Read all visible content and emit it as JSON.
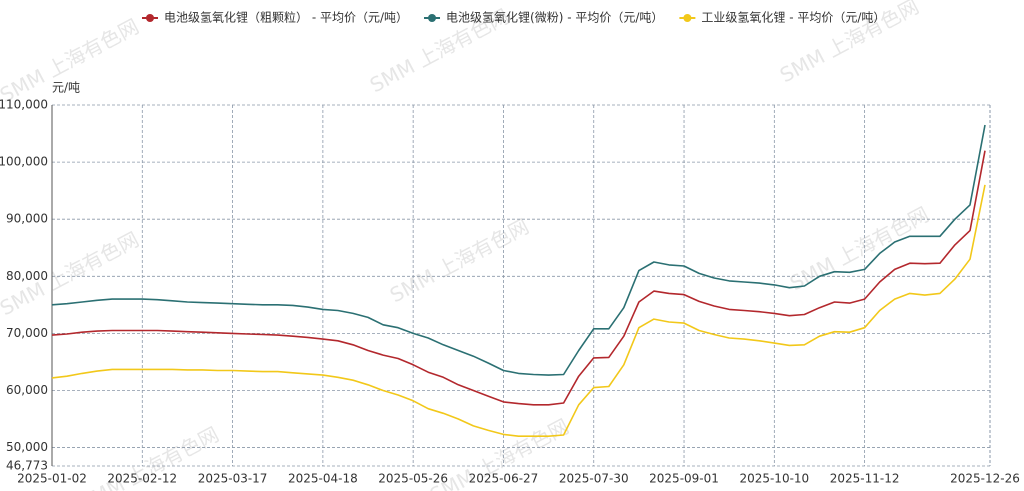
{
  "chart_data": {
    "type": "line",
    "y_unit": "元/吨",
    "watermark": "SMM 上海有色网",
    "categories": [
      "2025-01-02",
      null,
      null,
      null,
      null,
      null,
      "2025-02-12",
      null,
      null,
      null,
      null,
      null,
      "2025-03-17",
      null,
      null,
      null,
      null,
      null,
      "2025-04-18",
      null,
      null,
      null,
      null,
      null,
      "2025-05-26",
      null,
      null,
      null,
      null,
      null,
      "2025-06-27",
      null,
      null,
      null,
      null,
      null,
      "2025-07-30",
      null,
      null,
      null,
      null,
      null,
      "2025-09-01",
      null,
      null,
      null,
      null,
      null,
      "2025-10-10",
      null,
      null,
      null,
      null,
      null,
      "2025-11-12",
      null,
      null,
      null,
      null,
      null,
      null,
      null,
      "2025-12-26"
    ],
    "series": [
      {
        "name": "电池级氢氧化锂（粗颗粒） - 平均价（元/吨）",
        "color": "#b3282d",
        "values": [
          69700,
          69900,
          70200,
          70400,
          70500,
          70500,
          70500,
          70500,
          70400,
          70300,
          70200,
          70100,
          70000,
          69900,
          69800,
          69700,
          69500,
          69300,
          69000,
          68700,
          68000,
          67000,
          66200,
          65600,
          64500,
          63200,
          62300,
          61000,
          60000,
          59000,
          58000,
          57700,
          57500,
          57500,
          57800,
          62500,
          65700,
          65800,
          69500,
          75500,
          77400,
          77000,
          76800,
          75600,
          74800,
          74200,
          74000,
          73800,
          73500,
          73100,
          73300,
          74500,
          75500,
          75300,
          76000,
          79000,
          81200,
          82300,
          82200,
          82300,
          85500,
          88000,
          102000
        ]
      },
      {
        "name": "电池级氢氧化锂(微粉) - 平均价（元/吨）",
        "color": "#2b7073",
        "values": [
          75000,
          75200,
          75500,
          75800,
          76000,
          76000,
          76000,
          75900,
          75700,
          75500,
          75400,
          75300,
          75200,
          75100,
          75000,
          75000,
          74900,
          74600,
          74200,
          74000,
          73500,
          72800,
          71500,
          71000,
          70000,
          69200,
          68000,
          67000,
          66000,
          64800,
          63500,
          63000,
          62800,
          62700,
          62800,
          67000,
          70800,
          70800,
          74500,
          81000,
          82500,
          82000,
          81800,
          80500,
          79700,
          79200,
          79000,
          78800,
          78500,
          78000,
          78300,
          80000,
          80800,
          80700,
          81200,
          84000,
          86000,
          87000,
          87000,
          87000,
          90000,
          92500,
          106500
        ]
      },
      {
        "name": "工业级氢氧化锂 - 平均价（元/吨）",
        "color": "#f2c81a",
        "values": [
          62200,
          62500,
          63000,
          63400,
          63700,
          63700,
          63700,
          63700,
          63700,
          63600,
          63600,
          63500,
          63500,
          63400,
          63300,
          63300,
          63100,
          62900,
          62700,
          62300,
          61800,
          61000,
          60000,
          59200,
          58200,
          56800,
          56000,
          55000,
          53800,
          53000,
          52300,
          52000,
          52000,
          52000,
          52200,
          57500,
          60500,
          60700,
          64500,
          71000,
          72500,
          72000,
          71800,
          70500,
          69800,
          69200,
          69000,
          68700,
          68300,
          67900,
          68000,
          69500,
          70300,
          70200,
          71000,
          74000,
          76000,
          77000,
          76700,
          77000,
          79500,
          83000,
          96000
        ]
      }
    ],
    "ylim": [
      46773,
      110000
    ],
    "yticks": [
      {
        "value": 46773,
        "label": "46,773"
      },
      {
        "value": 50000,
        "label": "50,000"
      },
      {
        "value": 60000,
        "label": "60,000"
      },
      {
        "value": 70000,
        "label": "70,000"
      },
      {
        "value": 80000,
        "label": "80,000"
      },
      {
        "value": 90000,
        "label": "90,000"
      },
      {
        "value": 100000,
        "label": "100,000"
      },
      {
        "value": 110000,
        "label": "110,000"
      }
    ],
    "grid": true
  }
}
